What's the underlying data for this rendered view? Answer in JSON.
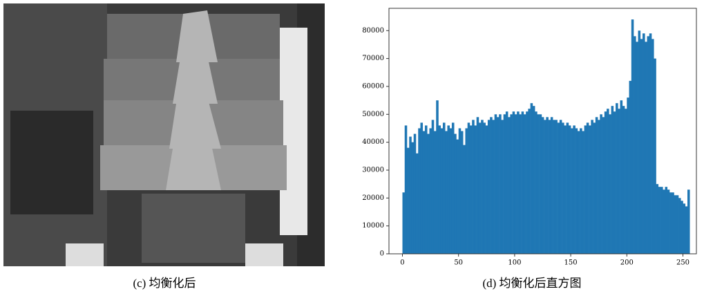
{
  "image_caption": "(c) 均衡化后",
  "chart_data": {
    "type": "histogram",
    "caption": "(d) 均衡化后直方图",
    "color": "#1f77b4",
    "bins": [
      0,
      2,
      4,
      6,
      8,
      10,
      12,
      14,
      16,
      18,
      20,
      22,
      24,
      26,
      28,
      30,
      32,
      34,
      36,
      38,
      40,
      42,
      44,
      46,
      48,
      50,
      52,
      54,
      56,
      58,
      60,
      62,
      64,
      66,
      68,
      70,
      72,
      74,
      76,
      78,
      80,
      82,
      84,
      86,
      88,
      90,
      92,
      94,
      96,
      98,
      100,
      102,
      104,
      106,
      108,
      110,
      112,
      114,
      116,
      118,
      120,
      122,
      124,
      126,
      128,
      130,
      132,
      134,
      136,
      138,
      140,
      142,
      144,
      146,
      148,
      150,
      152,
      154,
      156,
      158,
      160,
      162,
      164,
      166,
      168,
      170,
      172,
      174,
      176,
      178,
      180,
      182,
      184,
      186,
      188,
      190,
      192,
      194,
      196,
      198,
      200,
      202,
      204,
      206,
      208,
      210,
      212,
      214,
      216,
      218,
      220,
      222,
      224,
      226,
      228,
      230,
      232,
      234,
      236,
      238,
      240,
      242,
      244,
      246,
      248,
      250,
      252,
      254,
      256
    ],
    "values": [
      22000,
      46000,
      38000,
      42000,
      40000,
      43000,
      36000,
      45000,
      47000,
      44000,
      46000,
      43000,
      45000,
      48000,
      44000,
      55000,
      46000,
      45000,
      47000,
      44000,
      46000,
      45000,
      47000,
      43000,
      41000,
      45000,
      44000,
      39000,
      45000,
      47000,
      46000,
      48000,
      46000,
      49000,
      47000,
      48000,
      47000,
      46000,
      48000,
      49000,
      48000,
      50000,
      49000,
      50000,
      48000,
      50000,
      51000,
      49000,
      50000,
      51000,
      50000,
      51000,
      50000,
      51000,
      50000,
      51000,
      52000,
      54000,
      53000,
      51000,
      50000,
      50000,
      49000,
      48000,
      49000,
      48000,
      49000,
      48000,
      48000,
      47000,
      48000,
      47000,
      46000,
      47000,
      46000,
      45000,
      46000,
      45000,
      44000,
      45000,
      44000,
      46000,
      47000,
      46000,
      48000,
      47000,
      49000,
      48000,
      50000,
      49000,
      51000,
      52000,
      50000,
      53000,
      51000,
      54000,
      52000,
      55000,
      53000,
      52000,
      56000,
      62000,
      84000,
      78000,
      76000,
      80000,
      77000,
      79000,
      76000,
      78000,
      79000,
      77000,
      70000,
      25000,
      24000,
      24000,
      23000,
      24000,
      23000,
      22000,
      22000,
      21000,
      21000,
      20000,
      19000,
      18000,
      17000,
      23000
    ],
    "xlim": [
      -12,
      262
    ],
    "ylim": [
      0,
      88000
    ],
    "xticks": [
      0,
      50,
      100,
      150,
      200,
      250
    ],
    "yticks": [
      0,
      10000,
      20000,
      30000,
      40000,
      50000,
      60000,
      70000,
      80000
    ]
  }
}
